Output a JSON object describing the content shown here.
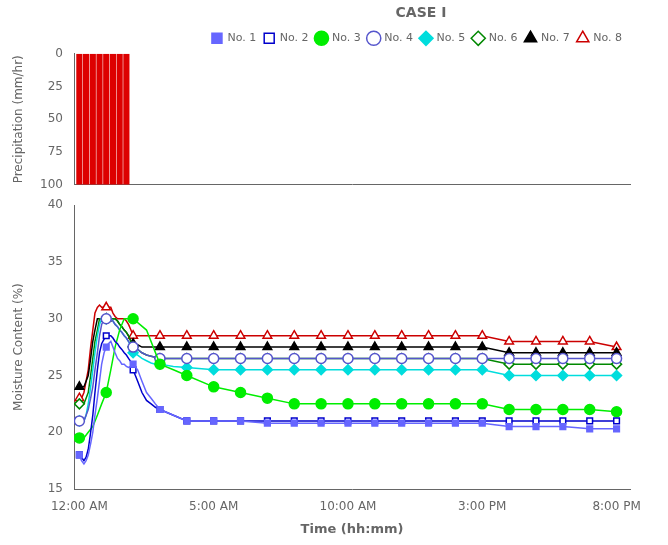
{
  "chart_data": [
    {
      "type": "bar",
      "ylabel": "Precipitation (mm/hr)",
      "x": [
        0.0,
        0.25,
        0.5,
        0.75,
        1.0,
        1.25,
        1.5,
        1.75
      ],
      "values": [
        100,
        100,
        100,
        100,
        100,
        100,
        100,
        100
      ],
      "color": "#DD0000",
      "xlim": [
        -0.2,
        20.5
      ],
      "xticks": [
        0,
        5,
        10,
        15,
        20
      ],
      "ylim": [
        100,
        0
      ],
      "yticks": [
        0,
        25,
        50,
        75,
        100
      ],
      "grid": false,
      "tick_labels": "y"
    },
    {
      "type": "line",
      "title": "CASE I",
      "xlabel": "Time (hh:mm)",
      "ylabel": "Moisture Content (%)",
      "xlim": [
        -0.2,
        20.5
      ],
      "xticks": [
        {
          "value": 0,
          "label": "12:00 AM"
        },
        {
          "value": 5,
          "label": "5:00 AM"
        },
        {
          "value": 10,
          "label": "10:00 AM"
        },
        {
          "value": 15,
          "label": "3:00 PM"
        },
        {
          "value": 20,
          "label": "8:00 PM"
        }
      ],
      "ylim": [
        15,
        40
      ],
      "yticks": [
        15,
        20,
        25,
        30,
        35,
        40
      ],
      "grid": false,
      "legend": "upper right",
      "series": [
        {
          "name": "No. 1",
          "color": "#6666ff",
          "marker": "square",
          "x": [
            0,
            0.08,
            0.17,
            0.25,
            0.33,
            0.42,
            0.5,
            0.58,
            0.67,
            0.75,
            0.83,
            0.92,
            1.0,
            1.08,
            1.17,
            1.25,
            1.33,
            1.42,
            1.5,
            1.58,
            1.67,
            1.75,
            1.83,
            1.92,
            2.0,
            2.17,
            2.33,
            2.5,
            2.67,
            2.83,
            3.0,
            3.5,
            4.0,
            5.0,
            6.0,
            7.0,
            8.0,
            9.0,
            10.0,
            11.0,
            12.0,
            13.0,
            14.0,
            15.0,
            16.0,
            17.0,
            18.0,
            19.0,
            20.0
          ],
          "values": [
            18.0,
            17.5,
            17.2,
            17.5,
            18.0,
            19.0,
            20.0,
            21.5,
            23.0,
            24.5,
            26.0,
            27.0,
            27.5,
            27.8,
            28.0,
            27.5,
            27.0,
            26.5,
            26.3,
            26.0,
            26.0,
            25.8,
            25.7,
            25.8,
            26.0,
            25.5,
            24.5,
            23.5,
            23.0,
            22.5,
            22.0,
            21.5,
            21.0,
            21.0,
            21.0,
            20.8,
            20.8,
            20.8,
            20.8,
            20.8,
            20.8,
            20.8,
            20.8,
            20.8,
            20.5,
            20.5,
            20.5,
            20.3,
            20.3
          ]
        },
        {
          "name": "No. 2",
          "color": "#0000cc",
          "marker": "square-open",
          "x": [
            0,
            0.08,
            0.17,
            0.25,
            0.33,
            0.42,
            0.5,
            0.58,
            0.67,
            0.75,
            0.83,
            0.92,
            1.0,
            1.08,
            1.17,
            1.25,
            1.33,
            1.42,
            1.5,
            1.58,
            1.67,
            1.75,
            1.83,
            1.92,
            2.0,
            2.17,
            2.33,
            2.5,
            2.67,
            2.83,
            3.0,
            3.5,
            4.0,
            5.0,
            6.0,
            7.0,
            8.0,
            9.0,
            10.0,
            11.0,
            12.0,
            13.0,
            14.0,
            15.0,
            16.0,
            17.0,
            18.0,
            19.0,
            20.0
          ],
          "values": [
            18.0,
            17.8,
            17.5,
            17.8,
            18.5,
            20.0,
            21.5,
            23.5,
            25.5,
            27.0,
            27.8,
            28.2,
            28.5,
            28.5,
            28.5,
            28.3,
            28.0,
            27.8,
            27.5,
            27.3,
            27.0,
            26.8,
            26.5,
            26.2,
            25.5,
            24.5,
            23.5,
            22.8,
            22.5,
            22.2,
            22.0,
            21.5,
            21.0,
            21.0,
            21.0,
            21.0,
            21.0,
            21.0,
            21.0,
            21.0,
            21.0,
            21.0,
            21.0,
            21.0,
            21.0,
            21.0,
            21.0,
            21.0,
            21.0
          ]
        },
        {
          "name": "No. 3",
          "color": "#00ee00",
          "marker": "circle",
          "x": [
            0,
            0.17,
            0.33,
            0.5,
            0.67,
            0.83,
            1.0,
            1.17,
            1.33,
            1.5,
            1.67,
            1.83,
            2.0,
            2.5,
            3.0,
            3.5,
            4.0,
            5.0,
            6.0,
            7.0,
            8.0,
            9.0,
            10.0,
            11.0,
            12.0,
            13.0,
            14.0,
            15.0,
            16.0,
            17.0,
            18.0,
            19.0,
            20.0
          ],
          "values": [
            19.5,
            19.5,
            20.0,
            20.5,
            21.5,
            22.5,
            23.5,
            25.5,
            27.5,
            29.0,
            30.0,
            30.0,
            30.0,
            29.0,
            26.0,
            25.5,
            25.0,
            24.0,
            23.5,
            23.0,
            22.5,
            22.5,
            22.5,
            22.5,
            22.5,
            22.5,
            22.5,
            22.5,
            22.0,
            22.0,
            22.0,
            22.0,
            21.8
          ]
        },
        {
          "name": "No. 4",
          "color": "#5555cc",
          "marker": "circle-open",
          "x": [
            0,
            0.08,
            0.17,
            0.25,
            0.33,
            0.42,
            0.5,
            0.58,
            0.67,
            0.75,
            0.83,
            0.92,
            1.0,
            1.08,
            1.17,
            1.25,
            1.33,
            1.42,
            1.5,
            1.58,
            1.67,
            1.75,
            1.83,
            1.92,
            2.0,
            2.17,
            2.33,
            2.5,
            2.67,
            2.83,
            3.0,
            3.5,
            4.0,
            5.0,
            6.0,
            7.0,
            8.0,
            9.0,
            10.0,
            11.0,
            12.0,
            13.0,
            14.0,
            15.0,
            16.0,
            17.0,
            18.0,
            19.0,
            20.0
          ],
          "values": [
            21.0,
            21.0,
            21.0,
            21.5,
            22.0,
            23.0,
            24.0,
            25.5,
            27.0,
            28.5,
            29.5,
            30.0,
            30.0,
            30.0,
            30.0,
            29.8,
            29.5,
            29.3,
            29.0,
            28.8,
            28.5,
            28.3,
            28.0,
            27.8,
            27.5,
            27.3,
            27.0,
            26.8,
            26.7,
            26.6,
            26.5,
            26.5,
            26.5,
            26.5,
            26.5,
            26.5,
            26.5,
            26.5,
            26.5,
            26.5,
            26.5,
            26.5,
            26.5,
            26.5,
            26.5,
            26.5,
            26.5,
            26.5,
            26.5
          ]
        },
        {
          "name": "No. 5",
          "color": "#00dddd",
          "marker": "diamond",
          "x": [
            0,
            0.08,
            0.17,
            0.25,
            0.33,
            0.42,
            0.5,
            0.58,
            0.67,
            0.75,
            0.83,
            0.92,
            1.0,
            1.08,
            1.17,
            1.25,
            1.33,
            1.42,
            1.5,
            1.58,
            1.67,
            1.75,
            1.83,
            1.92,
            2.0,
            2.17,
            2.33,
            2.5,
            2.67,
            2.83,
            3.0,
            3.5,
            4.0,
            5.0,
            6.0,
            7.0,
            8.0,
            9.0,
            10.0,
            11.0,
            12.0,
            13.0,
            14.0,
            15.0,
            16.0,
            17.0,
            18.0,
            19.0,
            20.0
          ],
          "values": [
            21.0,
            21.0,
            21.0,
            21.5,
            22.5,
            24.0,
            25.5,
            27.0,
            28.5,
            29.5,
            30.0,
            30.0,
            30.0,
            30.0,
            30.0,
            29.8,
            29.5,
            29.3,
            29.0,
            28.8,
            28.5,
            28.3,
            28.0,
            27.5,
            27.0,
            26.8,
            26.5,
            26.3,
            26.1,
            26.0,
            26.0,
            25.8,
            25.7,
            25.5,
            25.5,
            25.5,
            25.5,
            25.5,
            25.5,
            25.5,
            25.5,
            25.5,
            25.5,
            25.5,
            25.0,
            25.0,
            25.0,
            25.0,
            25.0
          ]
        },
        {
          "name": "No. 6",
          "color": "#008800",
          "marker": "diamond-open",
          "x": [
            0,
            0.08,
            0.17,
            0.25,
            0.33,
            0.42,
            0.5,
            0.58,
            0.67,
            0.75,
            0.83,
            0.92,
            1.0,
            1.08,
            1.17,
            1.25,
            1.33,
            1.42,
            1.5,
            1.58,
            1.67,
            1.75,
            1.83,
            1.92,
            2.0,
            2.17,
            2.33,
            2.5,
            2.67,
            2.83,
            3.0,
            3.5,
            4.0,
            5.0,
            6.0,
            7.0,
            8.0,
            9.0,
            10.0,
            11.0,
            12.0,
            13.0,
            14.0,
            15.0,
            16.0,
            17.0,
            18.0,
            19.0,
            20.0
          ],
          "values": [
            22.5,
            22.5,
            22.5,
            23.0,
            23.5,
            25.0,
            26.5,
            28.0,
            29.0,
            30.0,
            30.0,
            30.0,
            30.0,
            30.0,
            30.0,
            30.0,
            30.0,
            29.8,
            29.5,
            29.3,
            29.0,
            28.8,
            28.5,
            28.0,
            27.5,
            27.3,
            27.0,
            26.8,
            26.7,
            26.6,
            26.5,
            26.5,
            26.5,
            26.5,
            26.5,
            26.5,
            26.5,
            26.5,
            26.5,
            26.5,
            26.5,
            26.5,
            26.5,
            26.5,
            26.0,
            26.0,
            26.0,
            26.0,
            26.0
          ]
        },
        {
          "name": "No. 7",
          "color": "#000000",
          "marker": "triangle",
          "x": [
            0,
            0.08,
            0.17,
            0.25,
            0.33,
            0.42,
            0.5,
            0.58,
            0.67,
            0.75,
            0.83,
            0.92,
            1.0,
            1.08,
            1.17,
            1.25,
            1.33,
            1.42,
            1.5,
            1.58,
            1.67,
            1.75,
            1.83,
            1.92,
            2.0,
            2.17,
            2.33,
            2.5,
            2.67,
            2.83,
            3.0,
            3.5,
            4.0,
            5.0,
            6.0,
            7.0,
            8.0,
            9.0,
            10.0,
            11.0,
            12.0,
            13.0,
            14.0,
            15.0,
            16.0,
            17.0,
            18.0,
            19.0,
            20.0
          ],
          "values": [
            24.0,
            24.0,
            24.0,
            24.5,
            25.0,
            26.5,
            28.0,
            29.0,
            30.0,
            30.0,
            30.0,
            30.0,
            30.0,
            30.0,
            30.0,
            30.0,
            30.0,
            29.8,
            29.5,
            29.3,
            29.0,
            28.8,
            28.5,
            28.0,
            27.8,
            27.7,
            27.5,
            27.5,
            27.5,
            27.5,
            27.5,
            27.5,
            27.5,
            27.5,
            27.5,
            27.5,
            27.5,
            27.5,
            27.5,
            27.5,
            27.5,
            27.5,
            27.5,
            27.5,
            27.0,
            27.0,
            27.0,
            27.0,
            27.0
          ]
        },
        {
          "name": "No. 8",
          "color": "#cc0000",
          "marker": "triangle-open",
          "x": [
            0,
            0.08,
            0.17,
            0.25,
            0.33,
            0.42,
            0.5,
            0.58,
            0.67,
            0.75,
            0.83,
            0.92,
            1.0,
            1.08,
            1.17,
            1.25,
            1.33,
            1.42,
            1.5,
            1.58,
            1.67,
            1.75,
            1.83,
            1.92,
            2.0,
            2.17,
            2.33,
            2.5,
            2.67,
            2.83,
            3.0,
            3.5,
            4.0,
            5.0,
            6.0,
            7.0,
            8.0,
            9.0,
            10.0,
            11.0,
            12.0,
            13.0,
            14.0,
            15.0,
            16.0,
            17.0,
            18.0,
            19.0,
            20.0
          ],
          "values": [
            23.0,
            23.0,
            23.5,
            24.5,
            25.5,
            27.5,
            29.0,
            30.5,
            31.0,
            31.2,
            31.0,
            31.0,
            31.0,
            31.0,
            31.0,
            30.5,
            30.2,
            30.0,
            30.0,
            30.0,
            30.0,
            29.8,
            29.5,
            29.0,
            28.5,
            28.5,
            28.5,
            28.5,
            28.5,
            28.5,
            28.5,
            28.5,
            28.5,
            28.5,
            28.5,
            28.5,
            28.5,
            28.5,
            28.5,
            28.5,
            28.5,
            28.5,
            28.5,
            28.5,
            28.0,
            28.0,
            28.0,
            28.0,
            27.5
          ]
        }
      ]
    }
  ]
}
